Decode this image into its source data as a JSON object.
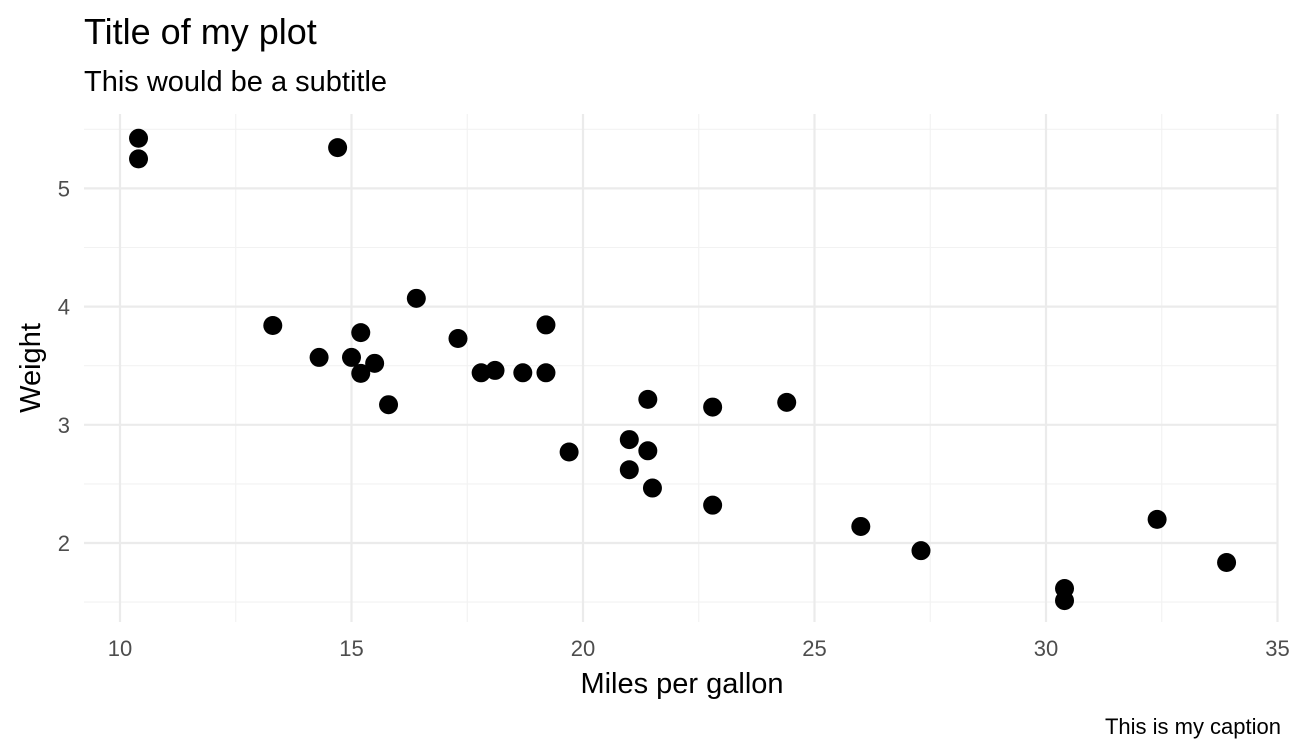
{
  "chart_data": {
    "type": "scatter",
    "title": "Title of my plot",
    "subtitle": "This would be a subtitle",
    "caption": "This is my caption",
    "xlabel": "Miles per gallon",
    "ylabel": "Weight",
    "xlim": [
      9.4,
      35
    ],
    "ylim": [
      1.35,
      5.6
    ],
    "x_ticks": [
      10,
      15,
      20,
      25,
      30,
      35
    ],
    "y_ticks": [
      2,
      3,
      4,
      5
    ],
    "x_tick_labels": [
      "10",
      "15",
      "20",
      "25",
      "30",
      "35"
    ],
    "y_tick_labels": [
      "2",
      "3",
      "4",
      "5"
    ],
    "grid": true,
    "point_color": "#000000",
    "grid_color": "#ebebeb",
    "points": [
      {
        "x": 21.0,
        "y": 2.62
      },
      {
        "x": 21.0,
        "y": 2.875
      },
      {
        "x": 22.8,
        "y": 2.32
      },
      {
        "x": 21.4,
        "y": 3.215
      },
      {
        "x": 18.7,
        "y": 3.44
      },
      {
        "x": 18.1,
        "y": 3.46
      },
      {
        "x": 14.3,
        "y": 3.57
      },
      {
        "x": 24.4,
        "y": 3.19
      },
      {
        "x": 22.8,
        "y": 3.15
      },
      {
        "x": 19.2,
        "y": 3.44
      },
      {
        "x": 17.8,
        "y": 3.44
      },
      {
        "x": 16.4,
        "y": 4.07
      },
      {
        "x": 17.3,
        "y": 3.73
      },
      {
        "x": 15.2,
        "y": 3.78
      },
      {
        "x": 10.4,
        "y": 5.25
      },
      {
        "x": 10.4,
        "y": 5.424
      },
      {
        "x": 14.7,
        "y": 5.345
      },
      {
        "x": 32.4,
        "y": 2.2
      },
      {
        "x": 30.4,
        "y": 1.615
      },
      {
        "x": 33.9,
        "y": 1.835
      },
      {
        "x": 21.5,
        "y": 2.465
      },
      {
        "x": 15.5,
        "y": 3.52
      },
      {
        "x": 15.2,
        "y": 3.435
      },
      {
        "x": 13.3,
        "y": 3.84
      },
      {
        "x": 19.2,
        "y": 3.845
      },
      {
        "x": 27.3,
        "y": 1.935
      },
      {
        "x": 26.0,
        "y": 2.14
      },
      {
        "x": 30.4,
        "y": 1.513
      },
      {
        "x": 15.8,
        "y": 3.17
      },
      {
        "x": 19.7,
        "y": 2.77
      },
      {
        "x": 15.0,
        "y": 3.57
      },
      {
        "x": 21.4,
        "y": 2.78
      }
    ]
  }
}
